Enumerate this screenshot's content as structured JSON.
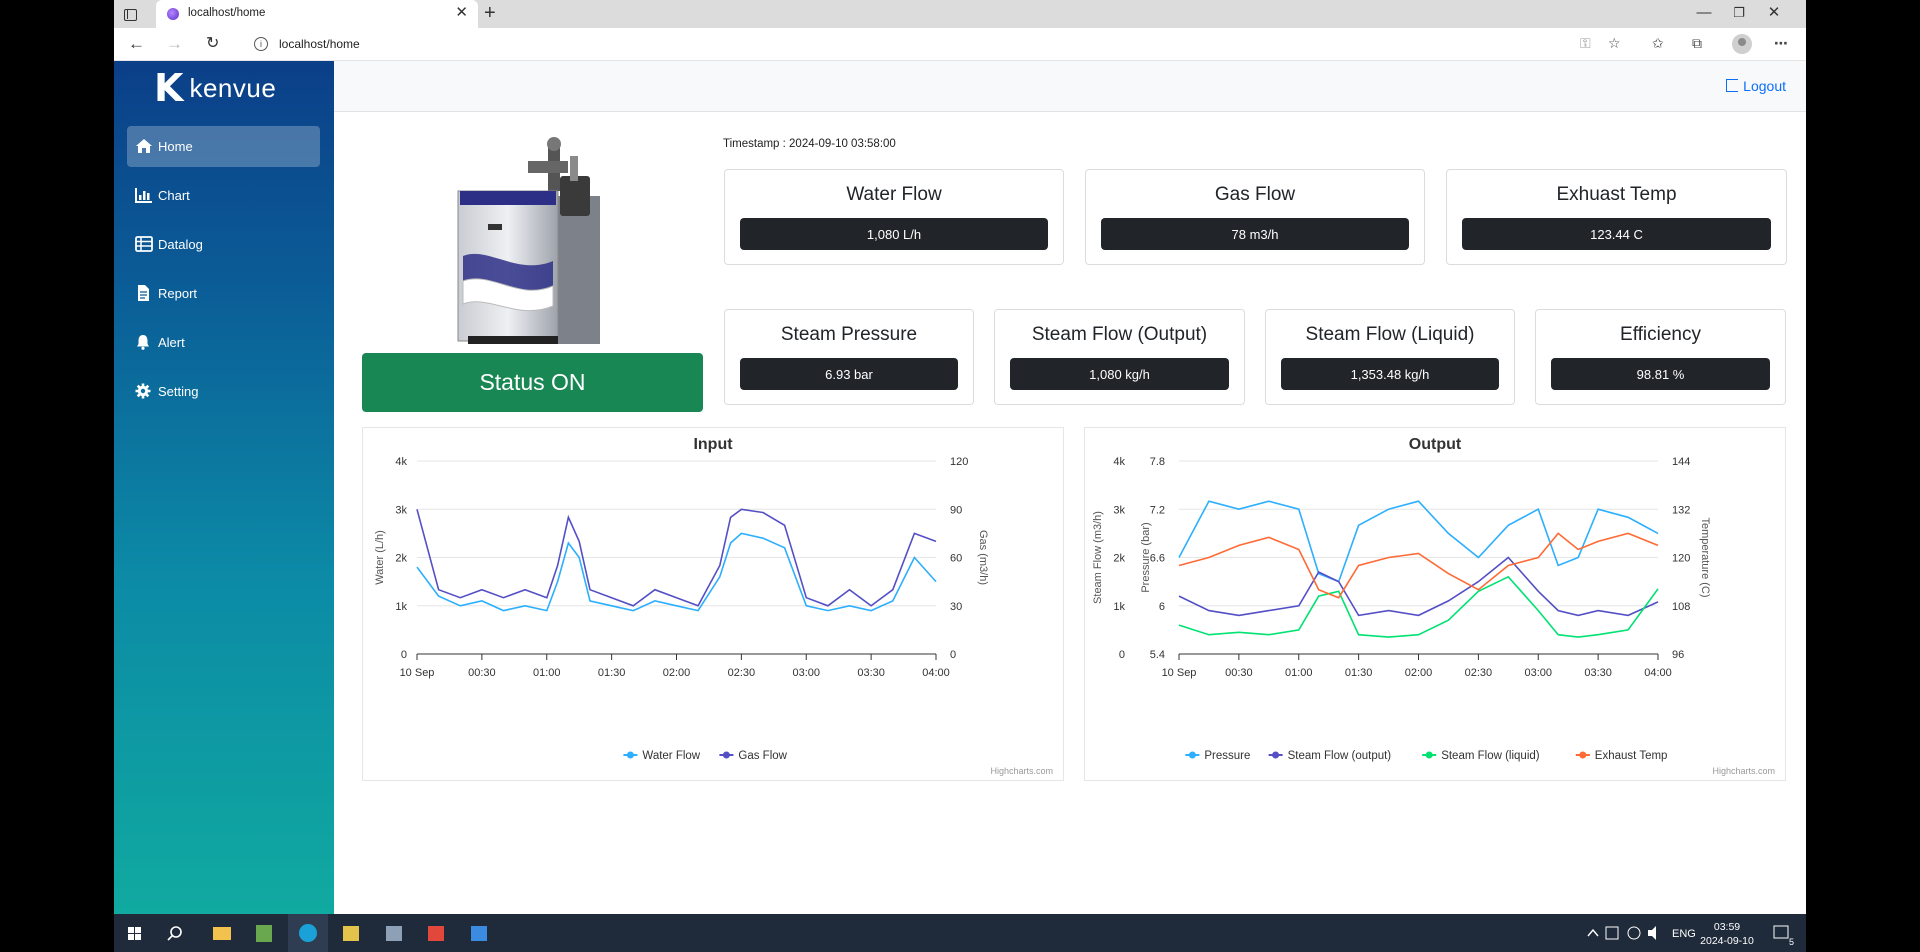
{
  "browser": {
    "tab_title": "localhost/home",
    "url": "localhost/home"
  },
  "brand": {
    "logo_mark": "K",
    "logo_text": "kenvue"
  },
  "sidebar": {
    "items": [
      {
        "label": "Home",
        "icon": "home-icon",
        "active": true
      },
      {
        "label": "Chart",
        "icon": "bar-chart-icon"
      },
      {
        "label": "Datalog",
        "icon": "table-icon"
      },
      {
        "label": "Report",
        "icon": "document-icon"
      },
      {
        "label": "Alert",
        "icon": "bell-icon"
      },
      {
        "label": "Setting",
        "icon": "gear-icon"
      }
    ]
  },
  "header": {
    "logout_label": "Logout"
  },
  "status": {
    "label": "Status ON",
    "color": "#198754"
  },
  "timestamp": "Timestamp : 2024-09-10 03:58:00",
  "metrics_top": [
    {
      "title": "Water Flow",
      "value": "1,080 L/h"
    },
    {
      "title": "Gas Flow",
      "value": "78 m3/h"
    },
    {
      "title": "Exhuast Temp",
      "value": "123.44 C"
    }
  ],
  "metrics_bottom": [
    {
      "title": "Steam Pressure",
      "value": "6.93 bar"
    },
    {
      "title": "Steam Flow (Output)",
      "value": "1,080 kg/h"
    },
    {
      "title": "Steam Flow (Liquid)",
      "value": "1,353.48 kg/h"
    },
    {
      "title": "Efficiency",
      "value": "98.81 %"
    }
  ],
  "chart_data": [
    {
      "type": "line",
      "title": "Input",
      "x_ticks": [
        "10 Sep",
        "00:30",
        "01:00",
        "01:30",
        "02:00",
        "02:30",
        "03:00",
        "03:30",
        "04:00"
      ],
      "x_range": [
        "2024-09-10 00:00",
        "2024-09-10 04:00"
      ],
      "axes": [
        {
          "title": "Water (L/h)",
          "side": "left",
          "ticks": [
            "0",
            "1k",
            "2k",
            "3k",
            "4k"
          ],
          "range": [
            0,
            4000
          ]
        },
        {
          "title": "Gas (m3/h)",
          "side": "right",
          "ticks": [
            "0",
            "30",
            "60",
            "90",
            "120"
          ],
          "range": [
            0,
            120
          ]
        }
      ],
      "series": [
        {
          "name": "Water Flow",
          "axis": 0,
          "color": "#2caffe",
          "x": [
            "00:00",
            "00:10",
            "00:20",
            "00:30",
            "00:40",
            "00:50",
            "01:00",
            "01:05",
            "01:10",
            "01:15",
            "01:20",
            "01:30",
            "01:40",
            "01:50",
            "02:00",
            "02:10",
            "02:20",
            "02:25",
            "02:30",
            "02:40",
            "02:50",
            "03:00",
            "03:10",
            "03:20",
            "03:30",
            "03:40",
            "03:50",
            "04:00"
          ],
          "values": [
            1800,
            1200,
            1000,
            1100,
            900,
            1000,
            900,
            1500,
            2300,
            2000,
            1100,
            1000,
            900,
            1100,
            1000,
            900,
            1600,
            2300,
            2500,
            2400,
            2200,
            1000,
            900,
            1000,
            900,
            1100,
            2000,
            1500
          ]
        },
        {
          "name": "Gas Flow",
          "axis": 1,
          "color": "#544fc5",
          "x": [
            "00:00",
            "00:10",
            "00:20",
            "00:30",
            "00:40",
            "00:50",
            "01:00",
            "01:05",
            "01:10",
            "01:15",
            "01:20",
            "01:30",
            "01:40",
            "01:50",
            "02:00",
            "02:10",
            "02:20",
            "02:25",
            "02:30",
            "02:40",
            "02:50",
            "03:00",
            "03:10",
            "03:20",
            "03:30",
            "03:40",
            "03:50",
            "04:00"
          ],
          "values": [
            90,
            40,
            35,
            40,
            35,
            40,
            35,
            55,
            85,
            70,
            40,
            35,
            30,
            40,
            35,
            30,
            55,
            85,
            90,
            88,
            80,
            35,
            30,
            40,
            30,
            40,
            75,
            70
          ]
        }
      ],
      "legend": "bottom-center",
      "credits": "Highcharts.com"
    },
    {
      "type": "line",
      "title": "Output",
      "x_ticks": [
        "10 Sep",
        "00:30",
        "01:00",
        "01:30",
        "02:00",
        "02:30",
        "03:00",
        "03:30",
        "04:00"
      ],
      "x_range": [
        "2024-09-10 00:00",
        "2024-09-10 04:00"
      ],
      "axes": [
        {
          "title": "Steam Flow (m3/h)",
          "side": "left",
          "ticks": [
            "0",
            "1k",
            "2k",
            "3k",
            "4k"
          ],
          "range": [
            0,
            4000
          ]
        },
        {
          "title": "Pressure (bar)",
          "side": "left",
          "ticks": [
            "5.4",
            "6",
            "6.6",
            "7.2",
            "7.8"
          ],
          "range": [
            5.4,
            7.8
          ]
        },
        {
          "title": "Temperature (C)",
          "side": "right",
          "ticks": [
            "96",
            "108",
            "120",
            "132",
            "144"
          ],
          "range": [
            96,
            144
          ]
        }
      ],
      "series": [
        {
          "name": "Pressure",
          "axis": 1,
          "color": "#2caffe",
          "x": [
            "00:00",
            "00:15",
            "00:30",
            "00:45",
            "01:00",
            "01:10",
            "01:20",
            "01:30",
            "01:45",
            "02:00",
            "02:15",
            "02:30",
            "02:45",
            "03:00",
            "03:10",
            "03:20",
            "03:30",
            "03:45",
            "04:00"
          ],
          "values": [
            6.6,
            7.3,
            7.2,
            7.3,
            7.2,
            6.4,
            6.3,
            7.0,
            7.2,
            7.3,
            6.9,
            6.6,
            7.0,
            7.2,
            6.5,
            6.6,
            7.2,
            7.1,
            6.9
          ]
        },
        {
          "name": "Steam Flow (output)",
          "axis": 0,
          "color": "#544fc5",
          "x": [
            "00:00",
            "00:15",
            "00:30",
            "00:45",
            "01:00",
            "01:10",
            "01:20",
            "01:30",
            "01:45",
            "02:00",
            "02:15",
            "02:30",
            "02:45",
            "03:00",
            "03:10",
            "03:20",
            "03:30",
            "03:45",
            "04:00"
          ],
          "values": [
            1200,
            900,
            800,
            900,
            1000,
            1700,
            1500,
            800,
            900,
            800,
            1100,
            1500,
            2000,
            1300,
            900,
            800,
            900,
            800,
            1080
          ]
        },
        {
          "name": "Steam Flow (liquid)",
          "axis": 0,
          "color": "#00e272",
          "x": [
            "00:00",
            "00:15",
            "00:30",
            "00:45",
            "01:00",
            "01:10",
            "01:20",
            "01:30",
            "01:45",
            "02:00",
            "02:15",
            "02:30",
            "02:45",
            "03:00",
            "03:10",
            "03:20",
            "03:30",
            "03:45",
            "04:00"
          ],
          "values": [
            600,
            400,
            450,
            400,
            500,
            1200,
            1300,
            400,
            350,
            400,
            700,
            1300,
            1600,
            900,
            400,
            350,
            400,
            500,
            1350
          ]
        },
        {
          "name": "Exhaust Temp",
          "axis": 2,
          "color": "#fe6a35",
          "x": [
            "00:00",
            "00:15",
            "00:30",
            "00:45",
            "01:00",
            "01:10",
            "01:20",
            "01:30",
            "01:45",
            "02:00",
            "02:15",
            "02:30",
            "02:45",
            "03:00",
            "03:10",
            "03:20",
            "03:30",
            "03:45",
            "04:00"
          ],
          "values": [
            118,
            120,
            123,
            125,
            122,
            112,
            110,
            118,
            120,
            121,
            116,
            112,
            118,
            120,
            126,
            122,
            124,
            126,
            123
          ]
        }
      ],
      "legend": "bottom-center",
      "credits": "Highcharts.com"
    }
  ],
  "taskbar": {
    "lang": "ENG",
    "time": "03:59",
    "date": "2024-09-10",
    "notif_count": "5"
  }
}
